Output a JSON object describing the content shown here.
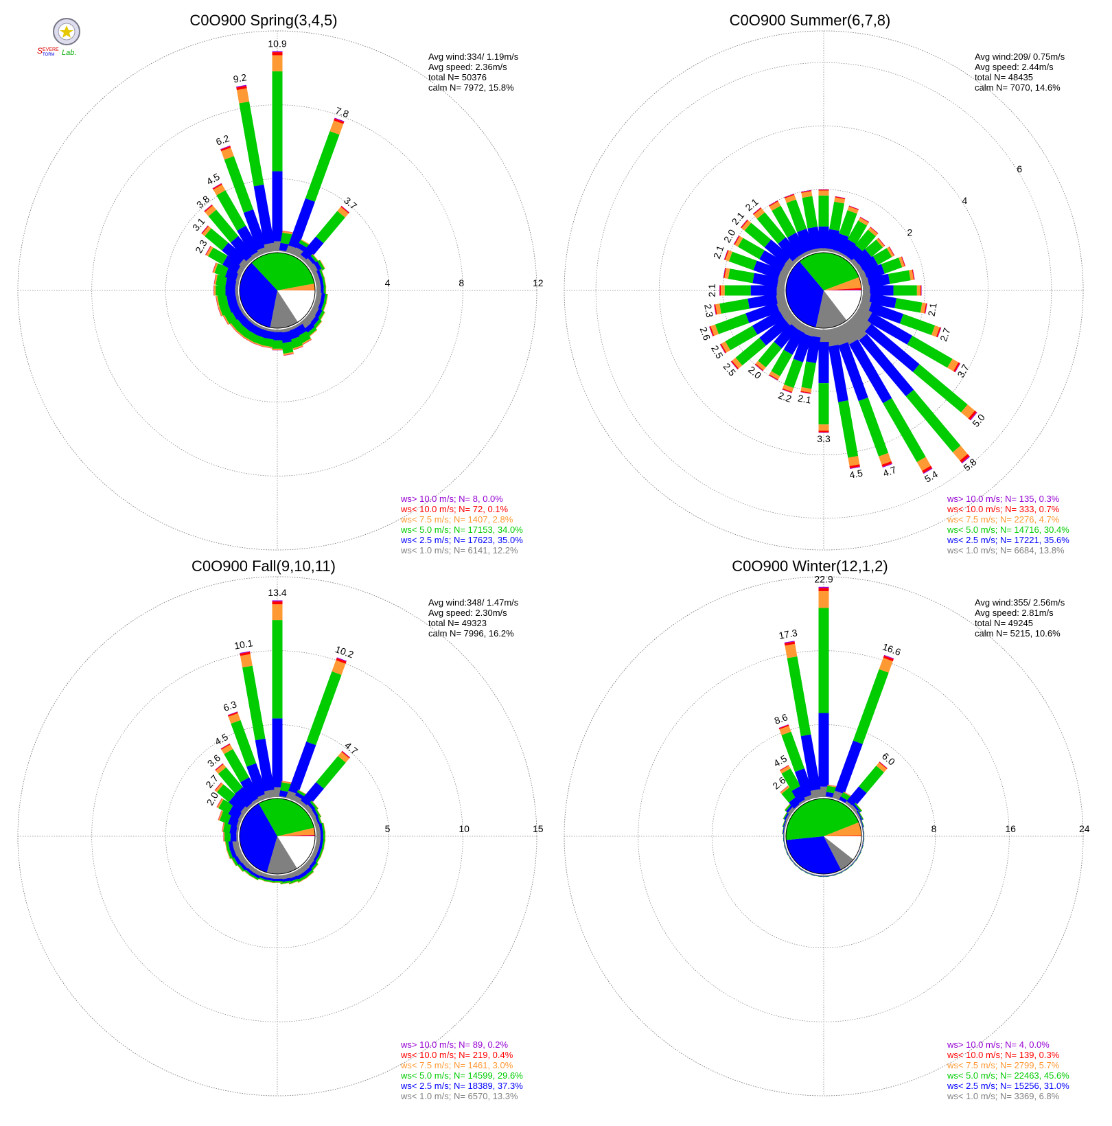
{
  "figure": {
    "logo_text": "SEVERE STORM Lab."
  },
  "colors": {
    "gt10": "#9400d3",
    "lt10": "#ff0000",
    "lt7_5": "#ff9933",
    "lt5": "#00cc00",
    "lt2_5": "#0000ff",
    "lt1": "#808080",
    "calm_pie": "#ffffff",
    "grid": "#888888",
    "text": "#000000"
  },
  "chart_data": [
    {
      "type": "windrose",
      "title": "C0O900 Spring(3,4,5)",
      "info": [
        "Avg wind:334/ 1.19m/s",
        "Avg speed: 2.36m/s",
        "total N=      50376",
        "calm N=   7972,  15.8%"
      ],
      "rmax": 12,
      "ring_labels": [
        "4",
        "8",
        "12"
      ],
      "rings": [
        4,
        8,
        12
      ],
      "ring_label_angle": 90,
      "pie": [
        12.2,
        35.0,
        34.0,
        2.8,
        0.1,
        0.0
      ],
      "calm_pct": 15.8,
      "legend": [
        {
          "label": "ws> 10.0 m/s; N=      8,  0.0%",
          "color_key": "gt10"
        },
        {
          "label": "ws< 10.0 m/s; N=     72,  0.1%",
          "color_key": "lt10"
        },
        {
          "label": "ws<  7.5 m/s; N=  1407,  2.8%",
          "color_key": "lt7_5"
        },
        {
          "label": "ws<  5.0 m/s; N= 17153, 34.0%",
          "color_key": "lt5"
        },
        {
          "label": "ws<  2.5 m/s; N= 17623, 35.0%",
          "color_key": "lt2_5"
        },
        {
          "label": "ws<  1.0 m/s; N=  6141, 12.2%",
          "color_key": "lt1"
        }
      ],
      "sectors": [
        {
          "dir": 0,
          "total": 10.9,
          "label": "10.9"
        },
        {
          "dir": 10,
          "total": 1.2
        },
        {
          "dir": 20,
          "total": 7.8,
          "label": "7.8"
        },
        {
          "dir": 30,
          "total": 1.0
        },
        {
          "dir": 40,
          "total": 3.7,
          "label": "3.7"
        },
        {
          "dir": 50,
          "total": 0.7
        },
        {
          "dir": 60,
          "total": 0.8
        },
        {
          "dir": 70,
          "total": 0.6
        },
        {
          "dir": 80,
          "total": 0.6
        },
        {
          "dir": 90,
          "total": 0.6
        },
        {
          "dir": 100,
          "total": 0.7
        },
        {
          "dir": 110,
          "total": 0.7
        },
        {
          "dir": 120,
          "total": 0.8
        },
        {
          "dir": 130,
          "total": 0.9
        },
        {
          "dir": 140,
          "total": 1.0
        },
        {
          "dir": 150,
          "total": 1.2
        },
        {
          "dir": 160,
          "total": 1.3
        },
        {
          "dir": 170,
          "total": 1.5
        },
        {
          "dir": 180,
          "total": 1.2
        },
        {
          "dir": 190,
          "total": 1.1
        },
        {
          "dir": 200,
          "total": 1.1
        },
        {
          "dir": 210,
          "total": 1.1
        },
        {
          "dir": 220,
          "total": 1.1
        },
        {
          "dir": 230,
          "total": 1.1
        },
        {
          "dir": 240,
          "total": 1.2
        },
        {
          "dir": 250,
          "total": 1.3
        },
        {
          "dir": 260,
          "total": 1.3
        },
        {
          "dir": 270,
          "total": 1.4
        },
        {
          "dir": 280,
          "total": 1.4
        },
        {
          "dir": 290,
          "total": 1.6
        },
        {
          "dir": 300,
          "total": 2.3,
          "label": "2.3"
        },
        {
          "dir": 310,
          "total": 3.1,
          "label": "3.1"
        },
        {
          "dir": 320,
          "total": 3.8,
          "label": "3.8"
        },
        {
          "dir": 330,
          "total": 4.5,
          "label": "4.5"
        },
        {
          "dir": 340,
          "total": 6.2,
          "label": "6.2"
        },
        {
          "dir": 350,
          "total": 9.2,
          "label": "9.2"
        }
      ]
    },
    {
      "type": "windrose",
      "title": "C0O900 Summer(6,7,8)",
      "info": [
        "Avg wind:209/ 0.75m/s",
        "Avg speed: 2.44m/s",
        "total N=      48435",
        "calm N=   7070,  14.6%"
      ],
      "rmax": 7,
      "ring_labels": [
        "2",
        "4",
        "6"
      ],
      "rings": [
        2,
        4,
        6,
        7
      ],
      "ring_label_angle": 60,
      "pie": [
        13.8,
        35.6,
        30.4,
        4.7,
        0.7,
        0.3
      ],
      "calm_pct": 14.6,
      "legend": [
        {
          "label": "ws> 10.0 m/s; N=    135,  0.3%",
          "color_key": "gt10"
        },
        {
          "label": "ws< 10.0 m/s; N=    333,  0.7%",
          "color_key": "lt10"
        },
        {
          "label": "ws<  7.5 m/s; N=  2276,  4.7%",
          "color_key": "lt7_5"
        },
        {
          "label": "ws<  5.0 m/s; N= 14716, 30.4%",
          "color_key": "lt5"
        },
        {
          "label": "ws<  2.5 m/s; N= 17221, 35.6%",
          "color_key": "lt2_5"
        },
        {
          "label": "ws<  1.0 m/s; N=  6684, 13.8%",
          "color_key": "lt1"
        }
      ],
      "sectors": [
        {
          "dir": 0,
          "total": 2.0
        },
        {
          "dir": 10,
          "total": 1.8
        },
        {
          "dir": 20,
          "total": 1.6
        },
        {
          "dir": 30,
          "total": 1.4
        },
        {
          "dir": 40,
          "total": 1.3
        },
        {
          "dir": 50,
          "total": 1.2
        },
        {
          "dir": 60,
          "total": 1.3
        },
        {
          "dir": 70,
          "total": 1.5
        },
        {
          "dir": 80,
          "total": 1.7
        },
        {
          "dir": 90,
          "total": 1.9
        },
        {
          "dir": 100,
          "total": 2.1,
          "label": "2.1"
        },
        {
          "dir": 110,
          "total": 2.7,
          "label": "2.7"
        },
        {
          "dir": 120,
          "total": 3.7,
          "label": "3.7"
        },
        {
          "dir": 130,
          "total": 5.0,
          "label": "5.0"
        },
        {
          "dir": 140,
          "total": 5.8,
          "label": "5.8"
        },
        {
          "dir": 150,
          "total": 5.4,
          "label": "5.4"
        },
        {
          "dir": 160,
          "total": 4.7,
          "label": "4.7"
        },
        {
          "dir": 170,
          "total": 4.5,
          "label": "4.5"
        },
        {
          "dir": 180,
          "total": 3.3,
          "label": "3.3"
        },
        {
          "dir": 190,
          "total": 2.1,
          "label": "2.1"
        },
        {
          "dir": 200,
          "total": 2.2,
          "label": "2.2"
        },
        {
          "dir": 210,
          "total": 2.0
        },
        {
          "dir": 220,
          "total": 2.0,
          "label": "2.0"
        },
        {
          "dir": 230,
          "total": 2.5,
          "label": "2.5"
        },
        {
          "dir": 240,
          "total": 2.5,
          "label": "2.5"
        },
        {
          "dir": 250,
          "total": 2.6,
          "label": "2.6"
        },
        {
          "dir": 260,
          "total": 2.3,
          "label": "2.3"
        },
        {
          "dir": 270,
          "total": 2.1,
          "label": "2.1"
        },
        {
          "dir": 280,
          "total": 2.0
        },
        {
          "dir": 290,
          "total": 2.1,
          "label": "2.1"
        },
        {
          "dir": 300,
          "total": 2.0,
          "label": "2.0"
        },
        {
          "dir": 310,
          "total": 2.1,
          "label": "2.1"
        },
        {
          "dir": 320,
          "total": 2.1,
          "label": "2.1"
        },
        {
          "dir": 330,
          "total": 2.0
        },
        {
          "dir": 340,
          "total": 2.0
        },
        {
          "dir": 350,
          "total": 2.0
        }
      ]
    },
    {
      "type": "windrose",
      "title": "C0O900 Fall(9,10,11)",
      "info": [
        "Avg wind:348/ 1.47m/s",
        "Avg speed: 2.30m/s",
        "total N=      49323",
        "calm N=   7996,  16.2%"
      ],
      "rmax": 15,
      "ring_labels": [
        "5",
        "10",
        "15"
      ],
      "rings": [
        5,
        10,
        15
      ],
      "ring_label_angle": 90,
      "pie": [
        13.3,
        37.3,
        29.6,
        3.0,
        0.4,
        0.2
      ],
      "calm_pct": 16.2,
      "legend": [
        {
          "label": "ws> 10.0 m/s; N=     89,  0.2%",
          "color_key": "gt10"
        },
        {
          "label": "ws< 10.0 m/s; N=    219,  0.4%",
          "color_key": "lt10"
        },
        {
          "label": "ws<  7.5 m/s; N=  1461,  3.0%",
          "color_key": "lt7_5"
        },
        {
          "label": "ws<  5.0 m/s; N= 14599, 29.6%",
          "color_key": "lt5"
        },
        {
          "label": "ws<  2.5 m/s; N= 18389, 37.3%",
          "color_key": "lt2_5"
        },
        {
          "label": "ws<  1.0 m/s; N=  6570, 13.3%",
          "color_key": "lt1"
        }
      ],
      "sectors": [
        {
          "dir": 0,
          "total": 13.4,
          "label": "13.4"
        },
        {
          "dir": 10,
          "total": 1.2
        },
        {
          "dir": 20,
          "total": 10.2,
          "label": "10.2"
        },
        {
          "dir": 30,
          "total": 0.9
        },
        {
          "dir": 40,
          "total": 4.7,
          "label": "4.7"
        },
        {
          "dir": 50,
          "total": 0.8
        },
        {
          "dir": 60,
          "total": 0.7
        },
        {
          "dir": 70,
          "total": 0.6
        },
        {
          "dir": 80,
          "total": 0.7
        },
        {
          "dir": 90,
          "total": 0.7
        },
        {
          "dir": 100,
          "total": 0.7
        },
        {
          "dir": 110,
          "total": 0.7
        },
        {
          "dir": 120,
          "total": 0.7
        },
        {
          "dir": 130,
          "total": 0.8
        },
        {
          "dir": 140,
          "total": 0.9
        },
        {
          "dir": 150,
          "total": 0.9
        },
        {
          "dir": 160,
          "total": 0.8
        },
        {
          "dir": 170,
          "total": 0.7
        },
        {
          "dir": 180,
          "total": 0.6
        },
        {
          "dir": 190,
          "total": 0.6
        },
        {
          "dir": 200,
          "total": 0.6
        },
        {
          "dir": 210,
          "total": 0.7
        },
        {
          "dir": 220,
          "total": 0.7
        },
        {
          "dir": 230,
          "total": 0.8
        },
        {
          "dir": 240,
          "total": 0.9
        },
        {
          "dir": 250,
          "total": 1.0
        },
        {
          "dir": 260,
          "total": 1.0
        },
        {
          "dir": 270,
          "total": 1.1
        },
        {
          "dir": 280,
          "total": 1.2
        },
        {
          "dir": 290,
          "total": 1.6
        },
        {
          "dir": 300,
          "total": 2.0,
          "label": "2.0"
        },
        {
          "dir": 310,
          "total": 2.7,
          "label": "2.7"
        },
        {
          "dir": 320,
          "total": 3.6,
          "label": "3.6"
        },
        {
          "dir": 330,
          "total": 4.5,
          "label": "4.5"
        },
        {
          "dir": 340,
          "total": 6.3,
          "label": "6.3"
        },
        {
          "dir": 350,
          "total": 10.1,
          "label": "10.1"
        }
      ]
    },
    {
      "type": "windrose",
      "title": "C0O900 Winter(12,1,2)",
      "info": [
        "Avg wind:355/ 2.56m/s",
        "Avg speed: 2.81m/s",
        "total N=      49245",
        "calm N=   5215,  10.6%"
      ],
      "rmax": 24,
      "ring_labels": [
        "8",
        "16",
        "24"
      ],
      "rings": [
        8,
        16,
        24
      ],
      "ring_label_angle": 90,
      "pie": [
        6.8,
        31.0,
        45.6,
        5.7,
        0.3,
        0.0
      ],
      "calm_pct": 10.6,
      "legend": [
        {
          "label": "ws> 10.0 m/s; N=      4,  0.0%",
          "color_key": "gt10"
        },
        {
          "label": "ws< 10.0 m/s; N=    139,  0.3%",
          "color_key": "lt10"
        },
        {
          "label": "ws<  7.5 m/s; N=  2799,  5.7%",
          "color_key": "lt7_5"
        },
        {
          "label": "ws<  5.0 m/s; N= 22463, 45.6%",
          "color_key": "lt5"
        },
        {
          "label": "ws<  2.5 m/s; N= 15256, 31.0%",
          "color_key": "lt2_5"
        },
        {
          "label": "ws<  1.0 m/s; N=  3369,  6.8%",
          "color_key": "lt1"
        }
      ],
      "sectors": [
        {
          "dir": 0,
          "total": 22.9,
          "label": "22.9"
        },
        {
          "dir": 10,
          "total": 1.5
        },
        {
          "dir": 20,
          "total": 16.6,
          "label": "16.6"
        },
        {
          "dir": 30,
          "total": 1.2
        },
        {
          "dir": 40,
          "total": 6.0,
          "label": "6.0"
        },
        {
          "dir": 50,
          "total": 0.9
        },
        {
          "dir": 60,
          "total": 0.6
        },
        {
          "dir": 70,
          "total": 0.4
        },
        {
          "dir": 80,
          "total": 0.3
        },
        {
          "dir": 90,
          "total": 0.3
        },
        {
          "dir": 100,
          "total": 0.3
        },
        {
          "dir": 110,
          "total": 0.3
        },
        {
          "dir": 120,
          "total": 0.3
        },
        {
          "dir": 130,
          "total": 0.3
        },
        {
          "dir": 140,
          "total": 0.3
        },
        {
          "dir": 150,
          "total": 0.3
        },
        {
          "dir": 160,
          "total": 0.3
        },
        {
          "dir": 170,
          "total": 0.3
        },
        {
          "dir": 180,
          "total": 0.3
        },
        {
          "dir": 190,
          "total": 0.3
        },
        {
          "dir": 200,
          "total": 0.3
        },
        {
          "dir": 210,
          "total": 0.3
        },
        {
          "dir": 220,
          "total": 0.3
        },
        {
          "dir": 230,
          "total": 0.3
        },
        {
          "dir": 240,
          "total": 0.3
        },
        {
          "dir": 250,
          "total": 0.3
        },
        {
          "dir": 260,
          "total": 0.3
        },
        {
          "dir": 270,
          "total": 0.3
        },
        {
          "dir": 280,
          "total": 0.4
        },
        {
          "dir": 290,
          "total": 0.5
        },
        {
          "dir": 300,
          "total": 0.7
        },
        {
          "dir": 310,
          "total": 1.0
        },
        {
          "dir": 320,
          "total": 2.6,
          "label": "2.6"
        },
        {
          "dir": 330,
          "total": 4.5,
          "label": "4.5"
        },
        {
          "dir": 340,
          "total": 8.6,
          "label": "8.6"
        },
        {
          "dir": 350,
          "total": 17.3,
          "label": "17.3"
        }
      ]
    }
  ]
}
